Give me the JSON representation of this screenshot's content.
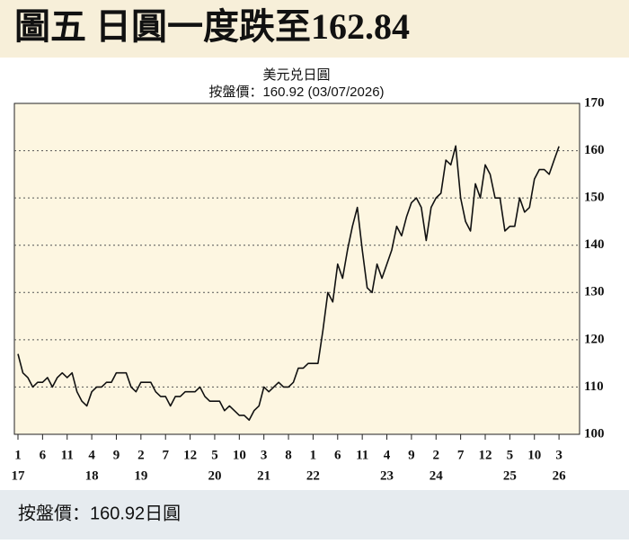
{
  "chart_data": {
    "type": "line",
    "title": "圖五 日圓一度跌至162.84",
    "subtitle": "美元兑日圓",
    "note": "按盤價：160.92 (03/07/2026)",
    "footer": "按盤價：160.92日圓",
    "x": [
      "2017-01",
      "2017-02",
      "2017-03",
      "2017-04",
      "2017-05",
      "2017-06",
      "2017-07",
      "2017-08",
      "2017-09",
      "2017-10",
      "2017-11",
      "2017-12",
      "2018-01",
      "2018-02",
      "2018-03",
      "2018-04",
      "2018-05",
      "2018-06",
      "2018-07",
      "2018-08",
      "2018-09",
      "2018-10",
      "2018-11",
      "2018-12",
      "2019-01",
      "2019-02",
      "2019-03",
      "2019-04",
      "2019-05",
      "2019-06",
      "2019-07",
      "2019-08",
      "2019-09",
      "2019-10",
      "2019-11",
      "2019-12",
      "2020-01",
      "2020-02",
      "2020-03",
      "2020-04",
      "2020-05",
      "2020-06",
      "2020-07",
      "2020-08",
      "2020-09",
      "2020-10",
      "2020-11",
      "2020-12",
      "2021-01",
      "2021-02",
      "2021-03",
      "2021-04",
      "2021-05",
      "2021-06",
      "2021-07",
      "2021-08",
      "2021-09",
      "2021-10",
      "2021-11",
      "2021-12",
      "2022-01",
      "2022-02",
      "2022-03",
      "2022-04",
      "2022-05",
      "2022-06",
      "2022-07",
      "2022-08",
      "2022-09",
      "2022-10",
      "2022-11",
      "2022-12",
      "2023-01",
      "2023-02",
      "2023-03",
      "2023-04",
      "2023-05",
      "2023-06",
      "2023-07",
      "2023-08",
      "2023-09",
      "2023-10",
      "2023-11",
      "2023-12",
      "2024-01",
      "2024-02",
      "2024-03",
      "2024-04",
      "2024-05",
      "2024-06",
      "2024-07",
      "2024-08",
      "2024-09",
      "2024-10",
      "2024-11",
      "2024-12",
      "2025-01",
      "2025-02",
      "2025-03",
      "2025-04",
      "2025-05",
      "2025-06",
      "2025-07",
      "2025-08",
      "2025-09",
      "2025-10",
      "2025-11",
      "2025-12",
      "2026-01",
      "2026-02",
      "2026-03"
    ],
    "series": [
      {
        "color": "#111111",
        "values": [
          117,
          113,
          112,
          110,
          111,
          111,
          112,
          110,
          112,
          113,
          112,
          113,
          109,
          107,
          106,
          109,
          110,
          110,
          111,
          111,
          113,
          113,
          113,
          110,
          109,
          111,
          111,
          111,
          109,
          108,
          108,
          106,
          108,
          108,
          109,
          109,
          109,
          110,
          108,
          107,
          107,
          107,
          105,
          106,
          105,
          104,
          104,
          103,
          105,
          106,
          110,
          109,
          110,
          111,
          110,
          110,
          111,
          114,
          114,
          115,
          115,
          115,
          122,
          130,
          128,
          136,
          133,
          139,
          144,
          148,
          139,
          131,
          130,
          136,
          133,
          136,
          139,
          144,
          142,
          146,
          149,
          150,
          148,
          141,
          148,
          150,
          151,
          158,
          157,
          161,
          150,
          145,
          143,
          153,
          150,
          157,
          155,
          150,
          150,
          143,
          144,
          144,
          150,
          147,
          148,
          154,
          156,
          156,
          155,
          158,
          160.92
        ]
      }
    ],
    "xlim": [
      "2017-01",
      "2026-07"
    ],
    "xticks": [
      {
        "value": "2017-01",
        "label": "1"
      },
      {
        "value": "2017-06",
        "label": "6"
      },
      {
        "value": "2017-11",
        "label": "11"
      },
      {
        "value": "2018-04",
        "label": "4"
      },
      {
        "value": "2018-09",
        "label": "9"
      },
      {
        "value": "2019-02",
        "label": "2"
      },
      {
        "value": "2019-07",
        "label": "7"
      },
      {
        "value": "2019-12",
        "label": "12"
      },
      {
        "value": "2020-05",
        "label": "5"
      },
      {
        "value": "2020-10",
        "label": "10"
      },
      {
        "value": "2021-03",
        "label": "3"
      },
      {
        "value": "2021-08",
        "label": "8"
      },
      {
        "value": "2022-01",
        "label": "1"
      },
      {
        "value": "2022-06",
        "label": "6"
      },
      {
        "value": "2022-11",
        "label": "11"
      },
      {
        "value": "2023-04",
        "label": "4"
      },
      {
        "value": "2023-09",
        "label": "9"
      },
      {
        "value": "2024-02",
        "label": "2"
      },
      {
        "value": "2024-07",
        "label": "7"
      },
      {
        "value": "2024-12",
        "label": "12"
      },
      {
        "value": "2025-05",
        "label": "5"
      },
      {
        "value": "2025-10",
        "label": "10"
      },
      {
        "value": "2026-03",
        "label": "3"
      }
    ],
    "xtick_years": [
      {
        "value": "2017-01",
        "label": "17"
      },
      {
        "value": "2018-04",
        "label": "18"
      },
      {
        "value": "2019-02",
        "label": "19"
      },
      {
        "value": "2020-05",
        "label": "20"
      },
      {
        "value": "2021-03",
        "label": "21"
      },
      {
        "value": "2022-01",
        "label": "22"
      },
      {
        "value": "2023-04",
        "label": "23"
      },
      {
        "value": "2024-02",
        "label": "24"
      },
      {
        "value": "2025-05",
        "label": "25"
      },
      {
        "value": "2026-03",
        "label": "26"
      }
    ],
    "ylim": [
      100,
      170
    ],
    "yticks": [
      100,
      110,
      120,
      130,
      140,
      150,
      160,
      170
    ],
    "grid": true
  }
}
